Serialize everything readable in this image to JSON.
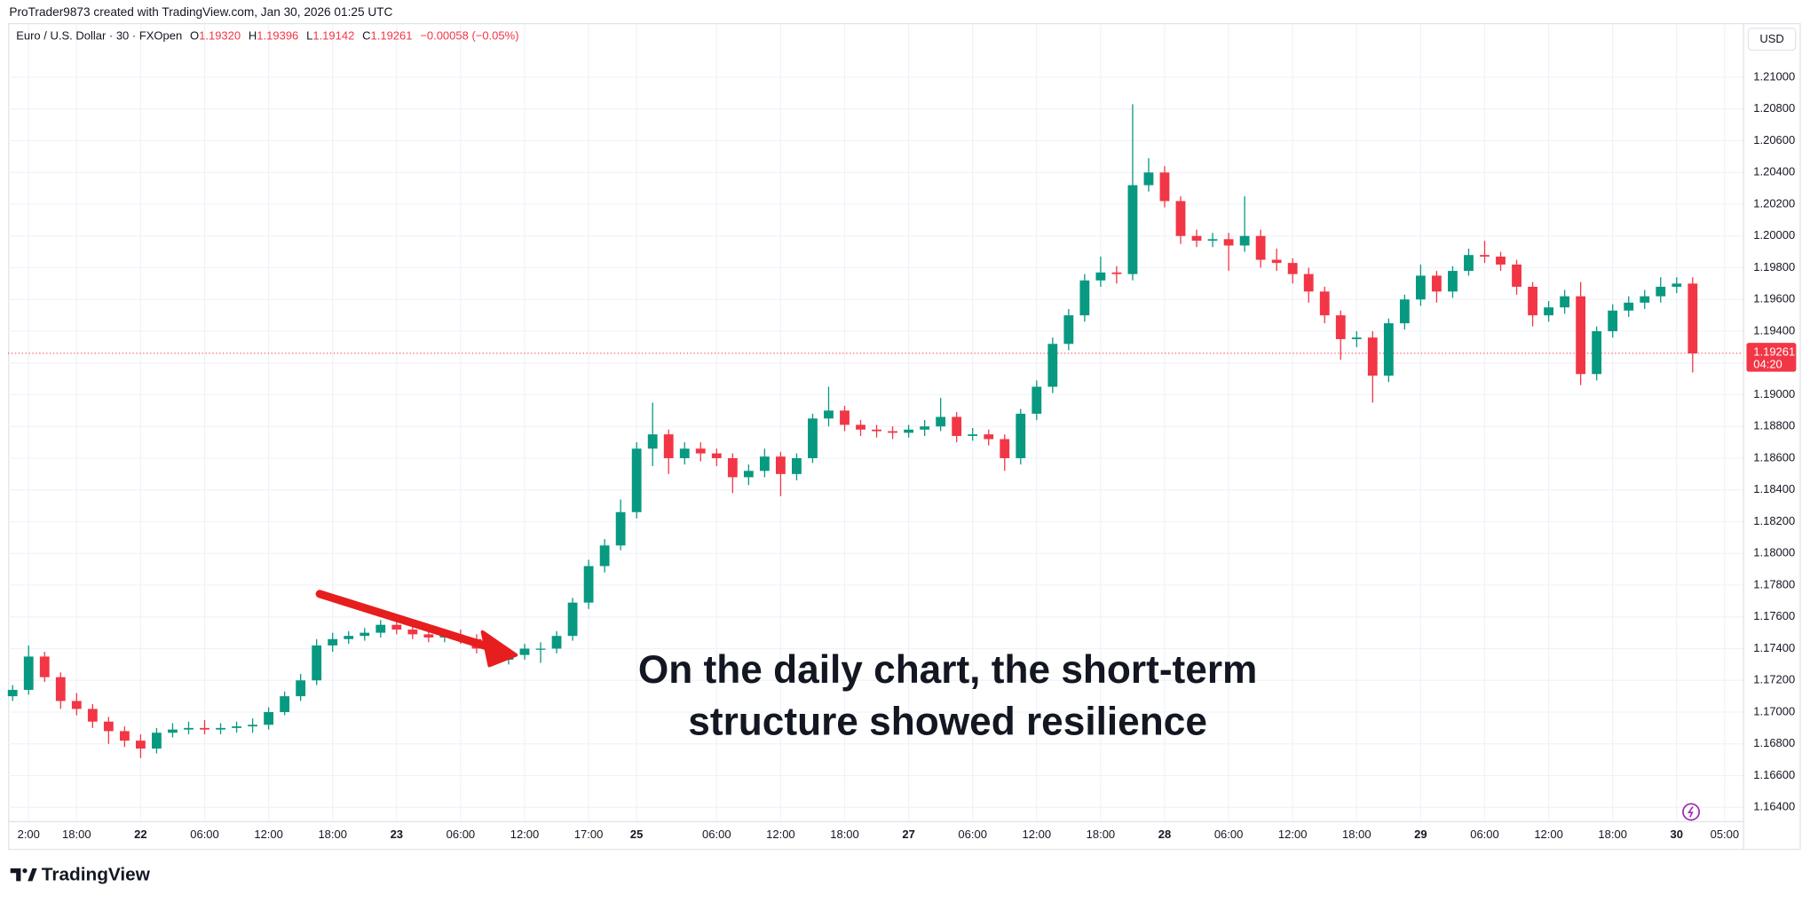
{
  "header": {
    "credit": "ProTrader9873 created with TradingView.com, Jan 30, 2026 01:25 UTC",
    "symbol": "Euro / U.S. Dollar · 30 · FXOpen",
    "ohlc": [
      {
        "key": "O",
        "value": "1.19320"
      },
      {
        "key": "H",
        "value": "1.19396"
      },
      {
        "key": "L",
        "value": "1.19142"
      },
      {
        "key": "C",
        "value": "1.19261"
      }
    ],
    "change": "−0.00058 (−0.05%)"
  },
  "currency": "USD",
  "brand": "TradingView",
  "chart_data": {
    "type": "candlestick",
    "annotation": [
      "On the daily chart, the short-term",
      "structure showed resilience"
    ],
    "up_color": "#089981",
    "down_color": "#f23645",
    "grid": true,
    "last_price": {
      "value": 1.19261,
      "label": "1.19261",
      "countdown": "04:20",
      "color": "#f23645"
    },
    "categories": [
      null,
      "2:00",
      null,
      null,
      "18:00",
      null,
      null,
      null,
      "22",
      null,
      null,
      null,
      "06:00",
      null,
      null,
      null,
      "12:00",
      null,
      null,
      null,
      "18:00",
      null,
      null,
      null,
      "23",
      null,
      null,
      null,
      "06:00",
      null,
      null,
      null,
      "12:00",
      null,
      null,
      null,
      "17:00",
      null,
      null,
      "25",
      null,
      null,
      null,
      null,
      "06:00",
      null,
      null,
      null,
      "12:00",
      null,
      null,
      null,
      "18:00",
      null,
      null,
      null,
      "27",
      null,
      null,
      null,
      "06:00",
      null,
      null,
      null,
      "12:00",
      null,
      null,
      null,
      "18:00",
      null,
      null,
      null,
      "28",
      null,
      null,
      null,
      "06:00",
      null,
      null,
      null,
      "12:00",
      null,
      null,
      null,
      "18:00",
      null,
      null,
      null,
      "29",
      null,
      null,
      null,
      "06:00",
      null,
      null,
      null,
      "12:00",
      null,
      null,
      null,
      "18:00",
      null,
      null,
      null,
      "30",
      null,
      null,
      "05:00"
    ],
    "open": [
      1.171,
      1.1714,
      1.1735,
      1.1722,
      1.1707,
      1.1702,
      1.1694,
      1.1688,
      1.1682,
      1.1677,
      1.1687,
      1.1689,
      1.169,
      1.1689,
      1.169,
      1.1691,
      1.1692,
      1.17,
      1.171,
      1.172,
      1.1742,
      1.1746,
      1.1748,
      1.175,
      1.1755,
      1.1752,
      1.1749,
      1.1747,
      1.1748,
      1.1746,
      1.174,
      1.1733,
      1.1736,
      1.174,
      1.174,
      1.1748,
      1.1769,
      1.1792,
      1.1805,
      1.1826,
      1.1866,
      1.1875,
      1.186,
      1.1866,
      1.1863,
      1.186,
      1.1848,
      1.1852,
      1.1861,
      1.185,
      1.186,
      1.1885,
      1.189,
      1.1881,
      1.1878,
      1.1877,
      1.1876,
      1.1878,
      1.188,
      1.1886,
      1.1874,
      1.1875,
      1.1872,
      1.186,
      1.1888,
      1.1905,
      1.1932,
      1.195,
      1.1972,
      1.1977,
      1.1976,
      1.2032,
      1.204,
      1.2022,
      1.2,
      1.1997,
      1.1998,
      1.1994,
      1.2,
      1.1985,
      1.1983,
      1.1976,
      1.1965,
      1.195,
      1.1935,
      1.1936,
      1.1912,
      1.1945,
      1.196,
      1.1975,
      1.1965,
      1.1978,
      1.1988,
      1.1987,
      1.1982,
      1.1968,
      1.195,
      1.1955,
      1.1962,
      1.1913,
      1.194,
      1.1953,
      1.1958,
      1.1962,
      1.1968,
      1.197,
      null,
      null
    ],
    "high": [
      1.1717,
      1.1742,
      1.1738,
      1.1725,
      1.1712,
      1.1705,
      1.1697,
      1.1691,
      1.1686,
      1.169,
      1.1693,
      1.1694,
      1.1695,
      1.1693,
      1.1694,
      1.1696,
      1.1703,
      1.1713,
      1.1724,
      1.1746,
      1.175,
      1.1751,
      1.1753,
      1.1758,
      1.1758,
      1.1755,
      1.1752,
      1.1751,
      1.1752,
      1.1749,
      1.1743,
      1.1739,
      1.1743,
      1.1744,
      1.1751,
      1.1772,
      1.1796,
      1.1809,
      1.1834,
      1.187,
      1.1895,
      1.1878,
      1.187,
      1.187,
      1.1866,
      1.1863,
      1.1856,
      1.1866,
      1.1864,
      1.1863,
      1.1888,
      1.1905,
      1.1893,
      1.1884,
      1.1881,
      1.188,
      1.1881,
      1.1884,
      1.1898,
      1.1889,
      1.1879,
      1.1878,
      1.1875,
      1.1891,
      1.1909,
      1.1936,
      1.1954,
      1.1976,
      1.1987,
      1.1981,
      1.2083,
      1.2049,
      1.2044,
      1.2025,
      1.2004,
      1.2002,
      1.2002,
      1.2025,
      1.2004,
      1.1992,
      1.1986,
      1.198,
      1.1968,
      1.1953,
      1.194,
      1.194,
      1.1948,
      1.1963,
      1.1982,
      1.1978,
      1.1981,
      1.1992,
      1.1997,
      1.199,
      1.1985,
      1.1971,
      1.1959,
      1.1966,
      1.1971,
      1.1943,
      1.1957,
      1.1962,
      1.1966,
      1.1974,
      1.1974,
      1.1974,
      null,
      null
    ],
    "low": [
      1.1707,
      1.1711,
      1.1719,
      1.1702,
      1.1698,
      1.169,
      1.168,
      1.1678,
      1.1671,
      1.1674,
      1.1684,
      1.1686,
      1.1686,
      1.1686,
      1.1687,
      1.1687,
      1.1689,
      1.1698,
      1.1707,
      1.1717,
      1.1738,
      1.1743,
      1.1745,
      1.1747,
      1.1749,
      1.1746,
      1.1744,
      1.1744,
      1.1743,
      1.1737,
      1.1729,
      1.173,
      1.1733,
      1.1731,
      1.1737,
      1.1745,
      1.1765,
      1.1788,
      1.1802,
      1.1822,
      1.1855,
      1.185,
      1.1856,
      1.1858,
      1.1855,
      1.1838,
      1.1843,
      1.1848,
      1.1836,
      1.1846,
      1.1857,
      1.188,
      1.1877,
      1.1874,
      1.1873,
      1.1872,
      1.1873,
      1.1874,
      1.1877,
      1.187,
      1.1871,
      1.1868,
      1.1852,
      1.1856,
      1.1884,
      1.1901,
      1.1928,
      1.1946,
      1.1968,
      1.197,
      1.1972,
      1.2028,
      1.2018,
      1.1995,
      1.1993,
      1.1993,
      1.1978,
      1.199,
      1.198,
      1.1978,
      1.197,
      1.1958,
      1.1945,
      1.1922,
      1.193,
      1.1895,
      1.1908,
      1.1941,
      1.1956,
      1.1958,
      1.1961,
      1.1975,
      1.1983,
      1.1978,
      1.1963,
      1.1943,
      1.1946,
      1.1951,
      1.1906,
      1.1909,
      1.1936,
      1.1949,
      1.1954,
      1.1958,
      1.1964,
      1.1914,
      null,
      null
    ],
    "close": [
      1.1714,
      1.1735,
      1.1722,
      1.1707,
      1.1702,
      1.1694,
      1.1688,
      1.1682,
      1.1677,
      1.1687,
      1.1689,
      1.169,
      1.1689,
      1.169,
      1.1691,
      1.1692,
      1.17,
      1.171,
      1.172,
      1.1742,
      1.1746,
      1.1748,
      1.175,
      1.1755,
      1.1752,
      1.1749,
      1.1747,
      1.1748,
      1.1746,
      1.174,
      1.1733,
      1.1736,
      1.174,
      1.174,
      1.1748,
      1.1769,
      1.1792,
      1.1805,
      1.1826,
      1.1866,
      1.1875,
      1.186,
      1.1866,
      1.1863,
      1.186,
      1.1848,
      1.1852,
      1.1861,
      1.185,
      1.186,
      1.1885,
      1.189,
      1.1881,
      1.1878,
      1.1877,
      1.1876,
      1.1878,
      1.188,
      1.1886,
      1.1874,
      1.1875,
      1.1872,
      1.186,
      1.1888,
      1.1905,
      1.1932,
      1.195,
      1.1972,
      1.1977,
      1.1976,
      1.2032,
      1.204,
      1.2022,
      1.2,
      1.1997,
      1.1998,
      1.1994,
      1.2,
      1.1985,
      1.1983,
      1.1976,
      1.1965,
      1.195,
      1.1935,
      1.1936,
      1.1912,
      1.1945,
      1.196,
      1.1975,
      1.1965,
      1.1978,
      1.1988,
      1.1987,
      1.1982,
      1.1968,
      1.195,
      1.1955,
      1.1962,
      1.1913,
      1.194,
      1.1953,
      1.1958,
      1.1962,
      1.1968,
      1.197,
      1.1926,
      null,
      null
    ],
    "ylim": [
      1.16313,
      1.21327
    ],
    "yticks": [
      {
        "value": 1.21,
        "label": "1.21000"
      },
      {
        "value": 1.208,
        "label": "1.20800"
      },
      {
        "value": 1.206,
        "label": "1.20600"
      },
      {
        "value": 1.204,
        "label": "1.20400"
      },
      {
        "value": 1.202,
        "label": "1.20200"
      },
      {
        "value": 1.2,
        "label": "1.20000"
      },
      {
        "value": 1.198,
        "label": "1.19800"
      },
      {
        "value": 1.196,
        "label": "1.19600"
      },
      {
        "value": 1.194,
        "label": "1.19400"
      },
      {
        "value": 1.192,
        "label": "1.19200"
      },
      {
        "value": 1.19,
        "label": "1.19000"
      },
      {
        "value": 1.188,
        "label": "1.18800"
      },
      {
        "value": 1.186,
        "label": "1.18600"
      },
      {
        "value": 1.184,
        "label": "1.18400"
      },
      {
        "value": 1.182,
        "label": "1.18200"
      },
      {
        "value": 1.18,
        "label": "1.18000"
      },
      {
        "value": 1.178,
        "label": "1.17800"
      },
      {
        "value": 1.176,
        "label": "1.17600"
      },
      {
        "value": 1.174,
        "label": "1.17400"
      },
      {
        "value": 1.172,
        "label": "1.17200"
      },
      {
        "value": 1.17,
        "label": "1.17000"
      },
      {
        "value": 1.168,
        "label": "1.16800"
      },
      {
        "value": 1.166,
        "label": "1.16600"
      },
      {
        "value": 1.164,
        "label": "1.16400"
      }
    ]
  }
}
